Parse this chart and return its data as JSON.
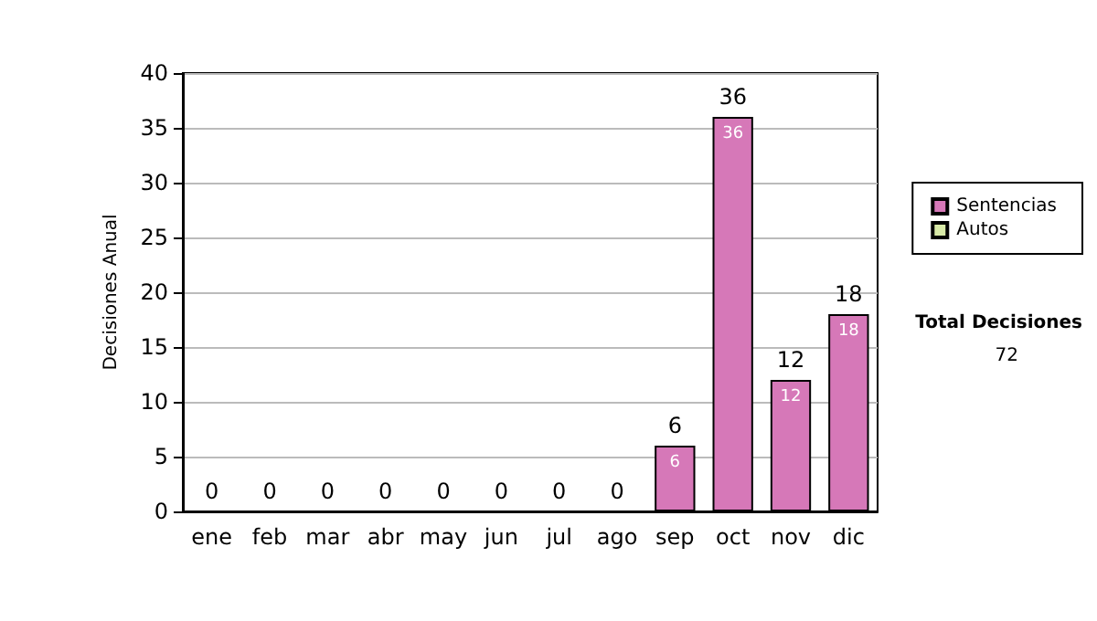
{
  "chart_data": {
    "type": "bar",
    "ylabel": "Decisiones Anual",
    "categories": [
      "ene",
      "feb",
      "mar",
      "abr",
      "may",
      "jun",
      "jul",
      "ago",
      "sep",
      "oct",
      "nov",
      "dic"
    ],
    "series": [
      {
        "name": "Sentencias",
        "color": "#d678b8",
        "values": [
          0,
          0,
          0,
          0,
          0,
          0,
          0,
          0,
          6,
          36,
          12,
          18
        ],
        "value_labels": [
          null,
          null,
          null,
          null,
          null,
          null,
          null,
          null,
          "6",
          "36",
          "12",
          "18"
        ]
      },
      {
        "name": "Autos",
        "color": "#d8eaa8",
        "values": [
          0,
          0,
          0,
          0,
          0,
          0,
          0,
          0,
          0,
          0,
          0,
          0
        ]
      }
    ],
    "stacked": true,
    "totals": [
      "0",
      "0",
      "0",
      "0",
      "0",
      "0",
      "0",
      "0",
      "6",
      "36",
      "12",
      "18"
    ],
    "ylim": [
      0,
      40
    ],
    "yticks": [
      0,
      5,
      10,
      15,
      20,
      25,
      30,
      35,
      40
    ],
    "grid": "y",
    "legend": "right",
    "annotations": [
      "Total Decisiones",
      "72"
    ]
  }
}
